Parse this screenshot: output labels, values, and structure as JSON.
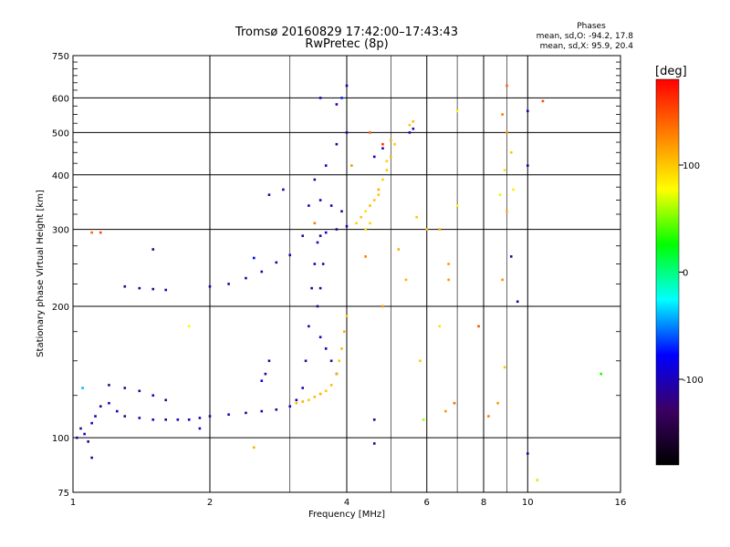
{
  "chart_data": {
    "type": "scatter",
    "title": "Tromsø 20160829 17:42:00–17:43:43",
    "subtitle": "RwPretec (8p)",
    "xlabel": "Frequency [MHz]",
    "ylabel": "Stationary phase Virtual Height [km]",
    "x_scale": "log",
    "y_scale": "log",
    "xlim": [
      1,
      16
    ],
    "ylim": [
      75,
      750
    ],
    "grid": true,
    "x_ticks": [
      1,
      2,
      4,
      6,
      8,
      10,
      16
    ],
    "x_tick_labels": [
      "1",
      "2",
      "4",
      "6",
      "8",
      "10",
      "16"
    ],
    "x_minor_ticks": [
      3,
      5,
      7,
      9
    ],
    "y_ticks": [
      75,
      100,
      200,
      300,
      400,
      500,
      600,
      750
    ],
    "y_tick_labels": [
      "75",
      "100",
      "200",
      "300",
      "400",
      "500",
      "600",
      "750"
    ],
    "y_minor_ticks": [
      125,
      150,
      175,
      225,
      250,
      275,
      325,
      350,
      375,
      425,
      450,
      475,
      525,
      550,
      575,
      625,
      650,
      675,
      700,
      725
    ],
    "legend_title": "Phases",
    "legend_lines": [
      "mean, sd,O: -94.2, 17.8",
      "mean, sd,X:  95.9, 20.4"
    ],
    "colorbar": {
      "label": "[deg]",
      "ticks": [
        100,
        0,
        -100
      ],
      "tick_labels": [
        "100",
        "0",
        "-100"
      ],
      "range": [
        -180,
        180
      ],
      "colors": [
        "#000000",
        "#3c0064",
        "#0000ff",
        "#00ffff",
        "#00ff00",
        "#ffff00",
        "#ff8000",
        "#ff0000"
      ]
    },
    "series": [
      {
        "points": [
          [
            1.02,
            100,
            -110
          ],
          [
            1.04,
            105,
            -115
          ],
          [
            1.06,
            102,
            -105
          ],
          [
            1.08,
            98,
            -120
          ],
          [
            1.1,
            108,
            -95
          ],
          [
            1.12,
            112,
            -100
          ],
          [
            1.15,
            118,
            -110
          ],
          [
            1.2,
            120,
            -95
          ],
          [
            1.25,
            115,
            -100
          ],
          [
            1.3,
            112,
            -110
          ],
          [
            1.4,
            111,
            -105
          ],
          [
            1.5,
            110,
            -100
          ],
          [
            1.6,
            110,
            -110
          ],
          [
            1.7,
            110,
            -95
          ],
          [
            1.8,
            110,
            -100
          ],
          [
            1.9,
            111,
            -105
          ],
          [
            2.0,
            112,
            -110
          ],
          [
            2.2,
            113,
            -100
          ],
          [
            2.4,
            114,
            -105
          ],
          [
            2.6,
            115,
            -100
          ],
          [
            2.8,
            116,
            -110
          ],
          [
            3.0,
            118,
            -95
          ],
          [
            3.1,
            122,
            -105
          ],
          [
            3.2,
            130,
            -100
          ],
          [
            3.25,
            150,
            -110
          ],
          [
            3.3,
            180,
            -100
          ],
          [
            3.35,
            220,
            -105
          ],
          [
            3.4,
            250,
            -110
          ],
          [
            3.45,
            280,
            -100
          ],
          [
            3.5,
            290,
            -105
          ],
          [
            3.6,
            295,
            -100
          ],
          [
            3.8,
            300,
            -110
          ],
          [
            4.0,
            305,
            -100
          ],
          [
            1.2,
            132,
            -120
          ],
          [
            1.3,
            130,
            -115
          ],
          [
            1.4,
            128,
            -110
          ],
          [
            1.5,
            125,
            -105
          ],
          [
            1.6,
            122,
            -110
          ],
          [
            1.3,
            222,
            -110
          ],
          [
            1.4,
            220,
            -105
          ],
          [
            1.5,
            219,
            -115
          ],
          [
            1.6,
            218,
            -105
          ],
          [
            2.0,
            222,
            -110
          ],
          [
            2.2,
            225,
            -105
          ],
          [
            2.4,
            232,
            -110
          ],
          [
            2.6,
            240,
            -100
          ],
          [
            2.8,
            252,
            -110
          ],
          [
            3.0,
            262,
            -105
          ],
          [
            3.2,
            290,
            -110
          ],
          [
            3.3,
            340,
            -105
          ],
          [
            3.4,
            390,
            -110
          ],
          [
            3.6,
            420,
            -100
          ],
          [
            3.8,
            470,
            -105
          ],
          [
            4.0,
            500,
            -110
          ],
          [
            3.5,
            600,
            -105
          ],
          [
            3.8,
            580,
            -110
          ],
          [
            4.0,
            640,
            -100
          ],
          [
            4.6,
            440,
            -105
          ],
          [
            4.8,
            460,
            -110
          ],
          [
            5.5,
            500,
            -115
          ],
          [
            5.6,
            510,
            -105
          ],
          [
            2.9,
            370,
            -110
          ],
          [
            2.7,
            360,
            -105
          ],
          [
            3.5,
            350,
            -110
          ],
          [
            3.7,
            340,
            -100
          ],
          [
            3.9,
            330,
            -105
          ],
          [
            3.55,
            250,
            -110
          ],
          [
            3.5,
            220,
            -105
          ],
          [
            3.45,
            200,
            -110
          ],
          [
            3.5,
            170,
            -100
          ],
          [
            3.6,
            160,
            -105
          ],
          [
            3.7,
            150,
            -110
          ],
          [
            3.8,
            140,
            -100
          ],
          [
            2.7,
            150,
            -105
          ],
          [
            2.65,
            140,
            -110
          ],
          [
            10.0,
            420,
            -110
          ],
          [
            10.0,
            560,
            -105
          ],
          [
            10.0,
            92,
            -110
          ],
          [
            9.2,
            260,
            -110
          ],
          [
            9.5,
            205,
            -110
          ],
          [
            4.6,
            110,
            -110
          ],
          [
            4.6,
            97,
            -110
          ],
          [
            2.5,
            258,
            -80
          ],
          [
            2.6,
            135,
            -80
          ],
          [
            3.9,
            600,
            -70
          ],
          [
            1.05,
            130,
            -40
          ],
          [
            1.5,
            270,
            -120
          ],
          [
            1.9,
            105,
            -100
          ],
          [
            1.1,
            90,
            -110
          ]
        ]
      },
      {
        "points": [
          [
            3.1,
            120,
            105
          ],
          [
            3.2,
            121,
            110
          ],
          [
            3.3,
            122,
            100
          ],
          [
            3.4,
            124,
            105
          ],
          [
            3.5,
            126,
            110
          ],
          [
            3.6,
            128,
            100
          ],
          [
            3.7,
            132,
            105
          ],
          [
            3.8,
            140,
            110
          ],
          [
            3.85,
            150,
            100
          ],
          [
            3.9,
            160,
            105
          ],
          [
            3.95,
            175,
            110
          ],
          [
            4.0,
            190,
            100
          ],
          [
            4.2,
            310,
            95
          ],
          [
            4.3,
            320,
            100
          ],
          [
            4.4,
            330,
            90
          ],
          [
            4.5,
            340,
            105
          ],
          [
            4.6,
            350,
            100
          ],
          [
            4.7,
            370,
            110
          ],
          [
            4.8,
            390,
            95
          ],
          [
            4.9,
            410,
            100
          ],
          [
            5.0,
            440,
            105
          ],
          [
            5.1,
            470,
            100
          ],
          [
            4.4,
            300,
            90
          ],
          [
            4.5,
            310,
            95
          ],
          [
            4.7,
            360,
            100
          ],
          [
            4.9,
            430,
            95
          ],
          [
            5.0,
            480,
            110
          ],
          [
            5.5,
            520,
            100
          ],
          [
            5.6,
            530,
            105
          ],
          [
            6.4,
            300,
            110
          ],
          [
            6.7,
            250,
            120
          ],
          [
            6.7,
            230,
            120
          ],
          [
            7.0,
            340,
            80
          ],
          [
            8.7,
            360,
            70
          ],
          [
            9.0,
            640,
            140
          ],
          [
            8.8,
            550,
            130
          ],
          [
            9.0,
            500,
            120
          ],
          [
            9.2,
            450,
            100
          ],
          [
            8.9,
            410,
            90
          ],
          [
            9.3,
            370,
            85
          ],
          [
            9.0,
            330,
            110
          ],
          [
            8.8,
            230,
            120
          ],
          [
            8.6,
            120,
            120
          ],
          [
            8.9,
            145,
            100
          ],
          [
            10.8,
            590,
            150
          ],
          [
            10.5,
            80,
            60
          ],
          [
            14.5,
            140,
            30
          ],
          [
            5.7,
            320,
            100
          ],
          [
            5.4,
            230,
            110
          ],
          [
            6.0,
            300,
            100
          ],
          [
            7.0,
            560,
            80
          ],
          [
            6.6,
            115,
            120
          ],
          [
            8.2,
            112,
            130
          ],
          [
            7.8,
            180,
            150
          ],
          [
            4.4,
            260,
            130
          ],
          [
            4.5,
            500,
            140
          ],
          [
            4.8,
            470,
            160
          ],
          [
            4.8,
            200,
            120
          ],
          [
            2.5,
            95,
            110
          ],
          [
            1.1,
            295,
            140
          ],
          [
            1.15,
            295,
            150
          ],
          [
            1.8,
            180,
            80
          ],
          [
            3.4,
            310,
            130
          ],
          [
            5.2,
            270,
            110
          ],
          [
            6.4,
            180,
            90
          ],
          [
            6.9,
            120,
            140
          ],
          [
            5.8,
            150,
            100
          ],
          [
            5.9,
            110,
            60
          ],
          [
            4.1,
            420,
            120
          ]
        ]
      }
    ]
  }
}
